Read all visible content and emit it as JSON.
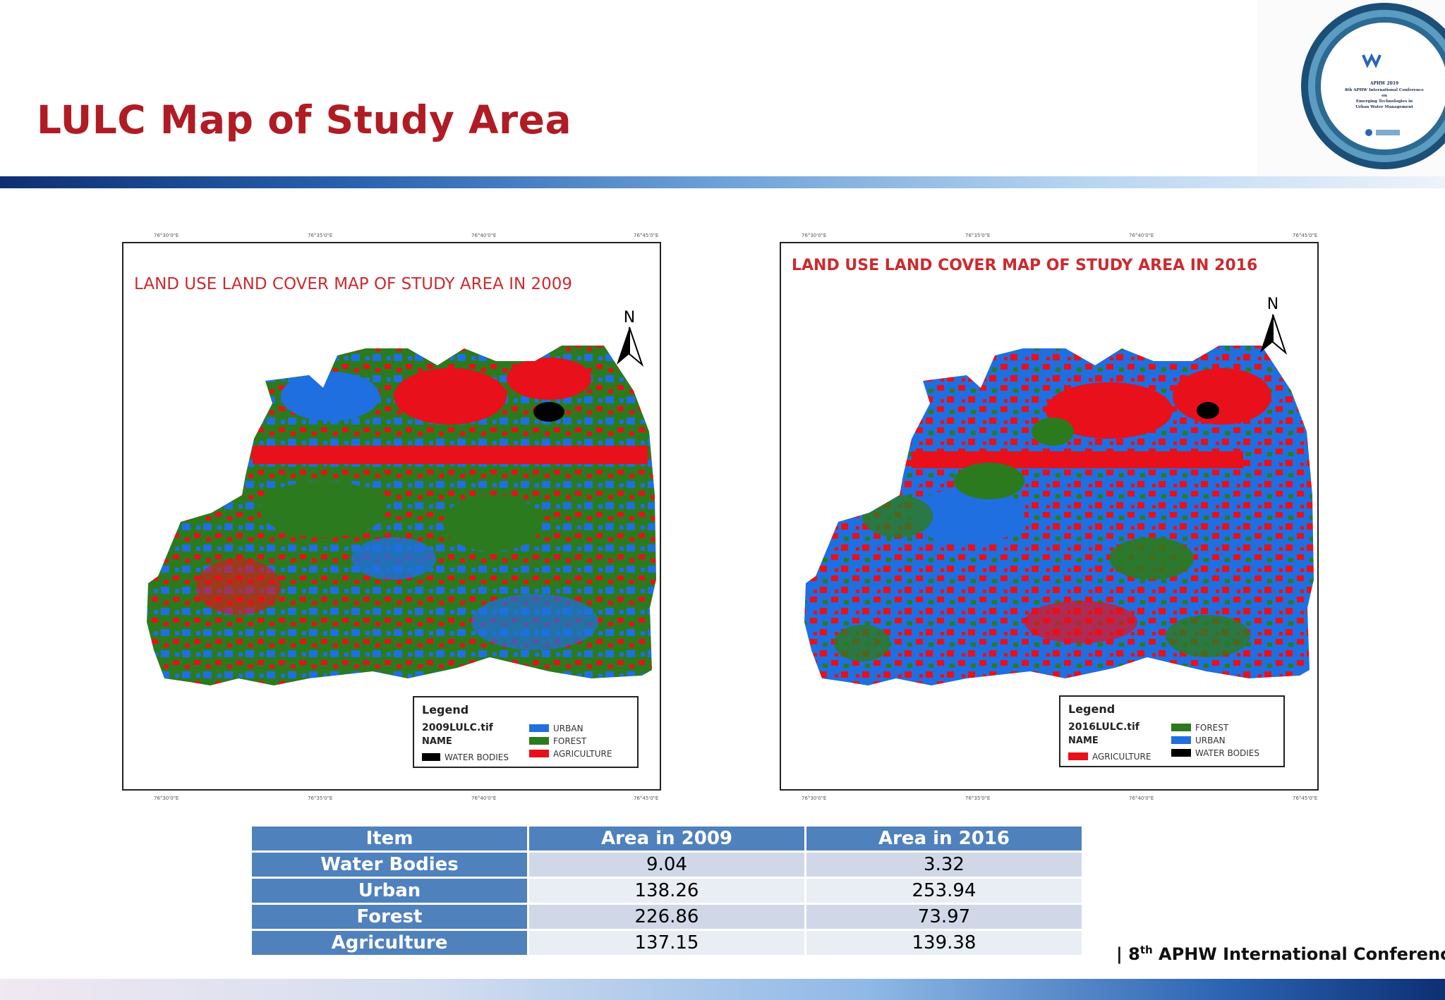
{
  "slide": {
    "title": "LULC Map of Study Area"
  },
  "logo": {
    "org": "APHW 2019",
    "lines": [
      "8th APHW International Conference",
      "on",
      "Emerging Technologies in",
      "Urban Water Management"
    ]
  },
  "maps": [
    {
      "title": "LAND USE LAND COVER MAP OF STUDY AREA IN 2009",
      "north": "N",
      "legend": {
        "heading": "Legend",
        "file": "2009LULC.tif",
        "name_label": "NAME",
        "items": [
          {
            "label": "URBAN",
            "color": "#1f6fe0"
          },
          {
            "label": "FOREST",
            "color": "#2c7a1e"
          },
          {
            "label": "AGRICULTURE",
            "color": "#e8101a"
          },
          {
            "label": "WATER BODIES",
            "color": "#000000"
          }
        ]
      }
    },
    {
      "title": "LAND USE LAND COVER MAP OF STUDY AREA IN 2016",
      "north": "N",
      "legend": {
        "heading": "Legend",
        "file": "2016LULC.tif",
        "name_label": "NAME",
        "items": [
          {
            "label": "FOREST",
            "color": "#2c7a1e"
          },
          {
            "label": "URBAN",
            "color": "#1f6fe0"
          },
          {
            "label": "WATER BODIES",
            "color": "#000000"
          },
          {
            "label": "AGRICULTURE",
            "color": "#e8101a"
          }
        ]
      }
    }
  ],
  "table": {
    "headers": [
      "Item",
      "Area in 2009",
      "Area in 2016"
    ],
    "rows": [
      {
        "item": "Water Bodies",
        "y2009": "9.04",
        "y2016": "3.32"
      },
      {
        "item": "Urban",
        "y2009": "138.26",
        "y2016": "253.94"
      },
      {
        "item": "Forest",
        "y2009": "226.86",
        "y2016": "73.97"
      },
      {
        "item": "Agriculture",
        "y2009": "137.15",
        "y2016": "139.38"
      }
    ]
  },
  "footer": {
    "prefix": "| 8",
    "sup": "th",
    "suffix": " APHW International Conference |"
  },
  "colors": {
    "title": "#b01c24",
    "table_header": "#4f81bd",
    "urban": "#1f6fe0",
    "forest": "#2c7a1e",
    "agriculture": "#e8101a",
    "water": "#000000"
  }
}
